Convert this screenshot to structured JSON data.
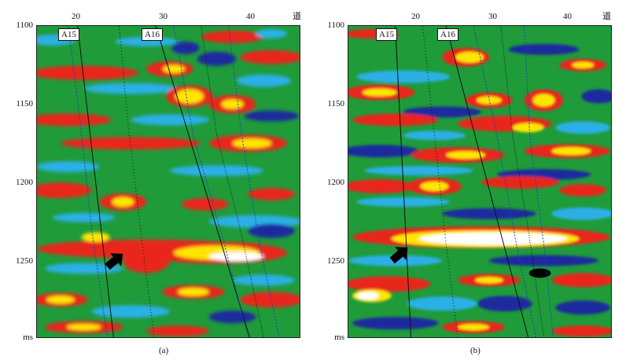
{
  "panels": [
    {
      "caption": "(a)",
      "x_unit": "道",
      "y_unit": "ms",
      "x_ticks": [
        "20",
        "30",
        "40"
      ],
      "y_ticks": [
        "1100",
        "1150",
        "1200",
        "1250"
      ],
      "wells": [
        "A15",
        "A16"
      ]
    },
    {
      "caption": "(b)",
      "x_unit": "道",
      "y_unit": "ms",
      "x_ticks": [
        "20",
        "30",
        "40"
      ],
      "y_ticks": [
        "1100",
        "1150",
        "1200",
        "1250"
      ],
      "wells": [
        "A15",
        "A16"
      ]
    }
  ],
  "colors": {
    "background": "#1f9b3a",
    "positive_strong": "#ffffff",
    "positive_mid": "#ffe600",
    "positive_low": "#e8281e",
    "negative_low": "#2ab0e6",
    "negative_strong": "#1e2a9e"
  },
  "icons": [
    "arrow-icon"
  ]
}
